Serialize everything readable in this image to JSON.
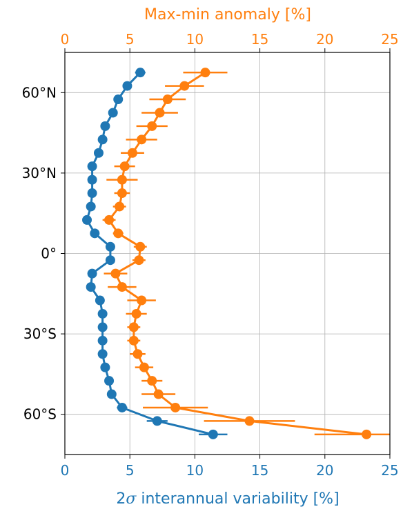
{
  "chart_data": {
    "type": "line",
    "xlabel_bottom": "2σ interannual variability [%]",
    "xlabel_bottom_prefix": "2",
    "xlabel_bottom_symbol": "σ",
    "xlabel_bottom_suffix": " interannual variability [%]",
    "xlabel_top": "Max-min anomaly [%]",
    "xlim_bottom": [
      0,
      25
    ],
    "xlim_top": [
      0,
      25
    ],
    "ylim": [
      -75,
      75
    ],
    "xticks_bottom": [
      0,
      5,
      10,
      15,
      20,
      25
    ],
    "xticks_top": [
      0,
      5,
      10,
      15,
      20,
      25
    ],
    "yticks": [
      {
        "value": 60,
        "label": "60°N"
      },
      {
        "value": 30,
        "label": "30°N"
      },
      {
        "value": 0,
        "label": "0°"
      },
      {
        "value": -30,
        "label": "30°S"
      },
      {
        "value": -60,
        "label": "60°S"
      }
    ],
    "grid": true,
    "series": [
      {
        "axis": "bottom",
        "color": "#1f77b4",
        "points": [
          {
            "lat": 67.5,
            "x": 5.8,
            "err": 0.4
          },
          {
            "lat": 62.5,
            "x": 4.8,
            "err": 0.3
          },
          {
            "lat": 57.5,
            "x": 4.1,
            "err": 0.3
          },
          {
            "lat": 52.5,
            "x": 3.7,
            "err": 0.3
          },
          {
            "lat": 47.5,
            "x": 3.1,
            "err": 0.3
          },
          {
            "lat": 42.5,
            "x": 2.9,
            "err": 0.3
          },
          {
            "lat": 37.5,
            "x": 2.6,
            "err": 0.3
          },
          {
            "lat": 32.5,
            "x": 2.1,
            "err": 0.3
          },
          {
            "lat": 27.5,
            "x": 2.1,
            "err": 0.3
          },
          {
            "lat": 22.5,
            "x": 2.1,
            "err": 0.3
          },
          {
            "lat": 17.5,
            "x": 2.0,
            "err": 0.3
          },
          {
            "lat": 12.5,
            "x": 1.7,
            "err": 0.3
          },
          {
            "lat": 7.5,
            "x": 2.3,
            "err": 0.3
          },
          {
            "lat": 2.5,
            "x": 3.5,
            "err": 0.3
          },
          {
            "lat": -2.5,
            "x": 3.5,
            "err": 0.3
          },
          {
            "lat": -7.5,
            "x": 2.1,
            "err": 0.3
          },
          {
            "lat": -12.5,
            "x": 2.0,
            "err": 0.3
          },
          {
            "lat": -17.5,
            "x": 2.7,
            "err": 0.3
          },
          {
            "lat": -22.5,
            "x": 2.9,
            "err": 0.3
          },
          {
            "lat": -27.5,
            "x": 2.9,
            "err": 0.3
          },
          {
            "lat": -32.5,
            "x": 2.9,
            "err": 0.3
          },
          {
            "lat": -37.5,
            "x": 2.9,
            "err": 0.3
          },
          {
            "lat": -42.5,
            "x": 3.1,
            "err": 0.3
          },
          {
            "lat": -47.5,
            "x": 3.4,
            "err": 0.3
          },
          {
            "lat": -52.5,
            "x": 3.6,
            "err": 0.3
          },
          {
            "lat": -57.5,
            "x": 4.4,
            "err": 0.4
          },
          {
            "lat": -62.5,
            "x": 7.1,
            "err": 0.8
          },
          {
            "lat": -67.5,
            "x": 11.4,
            "err": 1.1
          }
        ]
      },
      {
        "axis": "top",
        "color": "#ff7f0e",
        "points": [
          {
            "lat": 67.5,
            "x": 10.8,
            "err": 1.7
          },
          {
            "lat": 62.5,
            "x": 9.2,
            "err": 1.5
          },
          {
            "lat": 57.5,
            "x": 7.9,
            "err": 1.4
          },
          {
            "lat": 52.5,
            "x": 7.3,
            "err": 1.4
          },
          {
            "lat": 47.5,
            "x": 6.7,
            "err": 1.2
          },
          {
            "lat": 42.5,
            "x": 5.9,
            "err": 1.2
          },
          {
            "lat": 37.5,
            "x": 5.2,
            "err": 0.9
          },
          {
            "lat": 32.5,
            "x": 4.6,
            "err": 0.8
          },
          {
            "lat": 27.5,
            "x": 4.4,
            "err": 1.2
          },
          {
            "lat": 22.5,
            "x": 4.4,
            "err": 0.6
          },
          {
            "lat": 17.5,
            "x": 4.2,
            "err": 0.5
          },
          {
            "lat": 12.5,
            "x": 3.4,
            "err": 0.5
          },
          {
            "lat": 7.5,
            "x": 4.1,
            "err": 0.4
          },
          {
            "lat": 2.5,
            "x": 5.8,
            "err": 0.5
          },
          {
            "lat": -2.5,
            "x": 5.7,
            "err": 0.5
          },
          {
            "lat": -7.5,
            "x": 3.9,
            "err": 0.9
          },
          {
            "lat": -12.5,
            "x": 4.4,
            "err": 1.1
          },
          {
            "lat": -17.5,
            "x": 5.9,
            "err": 1.1
          },
          {
            "lat": -22.5,
            "x": 5.5,
            "err": 0.8
          },
          {
            "lat": -27.5,
            "x": 5.3,
            "err": 0.5
          },
          {
            "lat": -32.5,
            "x": 5.3,
            "err": 0.5
          },
          {
            "lat": -37.5,
            "x": 5.6,
            "err": 0.6
          },
          {
            "lat": -42.5,
            "x": 6.1,
            "err": 0.7
          },
          {
            "lat": -47.5,
            "x": 6.7,
            "err": 0.8
          },
          {
            "lat": -52.5,
            "x": 7.2,
            "err": 1.3
          },
          {
            "lat": -57.5,
            "x": 8.5,
            "err": 2.5
          },
          {
            "lat": -62.5,
            "x": 14.2,
            "err": 3.5
          },
          {
            "lat": -67.5,
            "x": 23.2,
            "err": 4.0
          }
        ]
      }
    ]
  }
}
